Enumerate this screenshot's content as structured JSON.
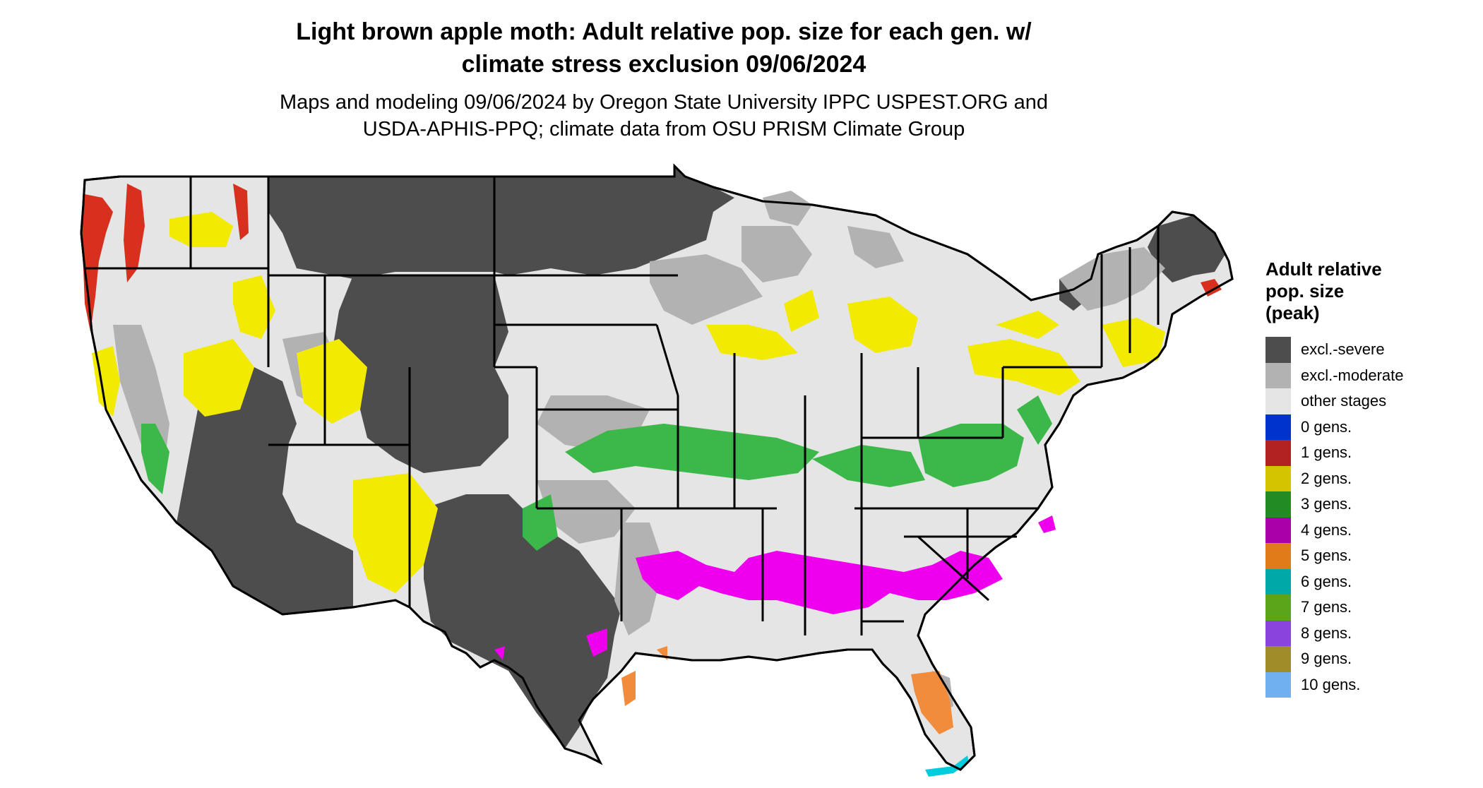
{
  "title_line1": "Light brown apple moth: Adult relative pop. size for each gen. w/",
  "title_line2": "climate stress exclusion 09/06/2024",
  "subtitle_line1": "Maps and modeling 09/06/2024 by Oregon State University IPPC USPEST.ORG and",
  "subtitle_line2": "USDA-APHIS-PPQ; climate data from OSU PRISM Climate Group",
  "legend": {
    "title_line1": "Adult relative",
    "title_line2": "pop. size",
    "title_line3": "(peak)",
    "items": [
      {
        "label": "excl.-severe",
        "color": "#4d4d4d"
      },
      {
        "label": "excl.-moderate",
        "color": "#b2b2b2"
      },
      {
        "label": "other stages",
        "color": "#e5e5e5"
      },
      {
        "label": "0 gens.",
        "color": "#0033cc"
      },
      {
        "label": "1 gens.",
        "color": "#b22222"
      },
      {
        "label": "2 gens.",
        "color": "#d4c400"
      },
      {
        "label": "3 gens.",
        "color": "#238b23"
      },
      {
        "label": "4 gens.",
        "color": "#aa00aa"
      },
      {
        "label": "5 gens.",
        "color": "#e07b1a"
      },
      {
        "label": "6 gens.",
        "color": "#00a8a8"
      },
      {
        "label": "7 gens.",
        "color": "#5aa51a"
      },
      {
        "label": "8 gens.",
        "color": "#8844dd"
      },
      {
        "label": "9 gens.",
        "color": "#a08c28"
      },
      {
        "label": "10 gens.",
        "color": "#70b0f0"
      }
    ]
  },
  "map_colors": {
    "excl_severe": "#4d4d4d",
    "excl_moderate": "#b2b2b2",
    "other_stages": "#e5e5e5",
    "gen1": "#d7301f",
    "gen2": "#f2ea00",
    "gen3": "#3cb84a",
    "gen4": "#ee00ee",
    "gen5": "#f08c3c",
    "gen6": "#00ccdd",
    "border": "#000000"
  }
}
